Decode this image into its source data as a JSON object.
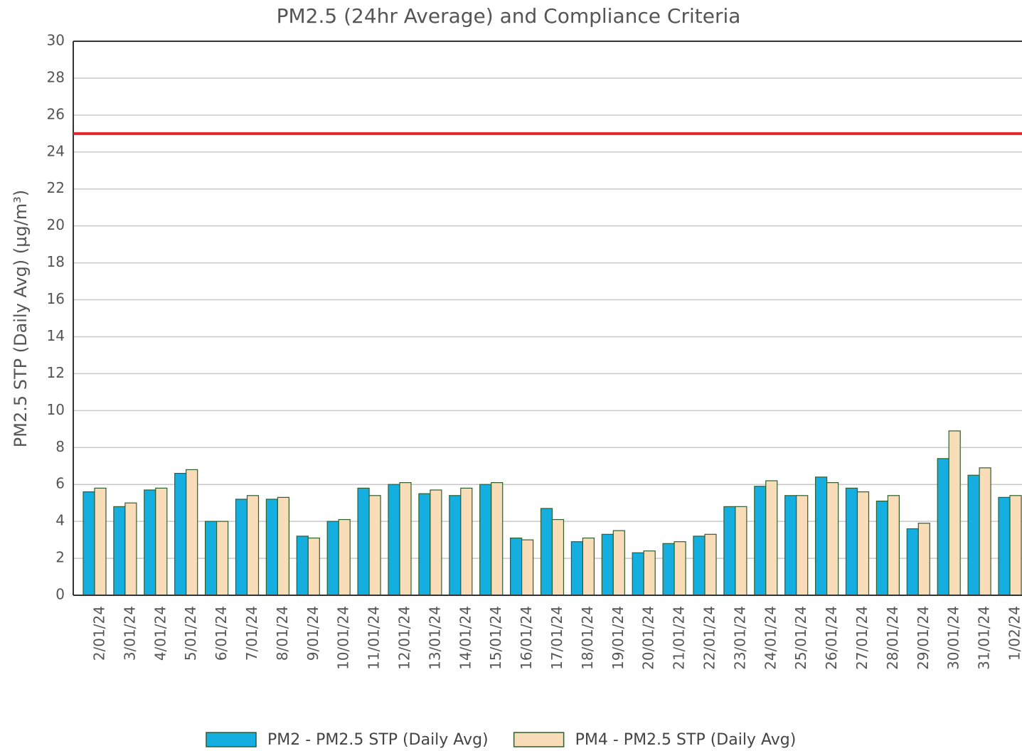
{
  "chart_data": {
    "type": "bar",
    "title": "PM2.5 (24hr Average) and Compliance Criteria",
    "y_label": "PM2.5 STP (Daily Avg) (µg/m³)",
    "categories": [
      "2/01/24",
      "3/01/24",
      "4/01/24",
      "5/01/24",
      "6/01/24",
      "7/01/24",
      "8/01/24",
      "9/01/24",
      "10/01/24",
      "11/01/24",
      "12/01/24",
      "13/01/24",
      "14/01/24",
      "15/01/24",
      "16/01/24",
      "17/01/24",
      "18/01/24",
      "19/01/24",
      "20/01/24",
      "21/01/24",
      "22/01/24",
      "23/01/24",
      "24/01/24",
      "25/01/24",
      "26/01/24",
      "27/01/24",
      "28/01/24",
      "29/01/24",
      "30/01/24",
      "31/01/24",
      "1/02/24"
    ],
    "series": [
      {
        "name": "PM2 - PM2.5 STP (Daily Avg)",
        "color": "#14aee0",
        "values": [
          5.6,
          4.8,
          5.7,
          6.6,
          4.0,
          5.2,
          5.2,
          3.2,
          4.0,
          5.8,
          6.0,
          5.5,
          5.4,
          6.0,
          3.1,
          4.7,
          2.9,
          3.3,
          2.3,
          2.8,
          3.2,
          4.8,
          5.9,
          5.4,
          6.4,
          5.8,
          5.1,
          3.6,
          7.4,
          6.5,
          5.3
        ]
      },
      {
        "name": "PM4 - PM2.5 STP (Daily Avg)",
        "color": "#f8ddb8",
        "values": [
          5.8,
          5.0,
          5.8,
          6.8,
          4.0,
          5.4,
          5.3,
          3.1,
          4.1,
          5.4,
          6.1,
          5.7,
          5.8,
          6.1,
          3.0,
          4.1,
          3.1,
          3.5,
          2.4,
          2.9,
          3.3,
          4.8,
          6.2,
          5.4,
          6.1,
          5.6,
          5.4,
          3.9,
          8.9,
          6.9,
          5.4
        ]
      }
    ],
    "reference_line": {
      "value": 25,
      "color": "#e0262e"
    },
    "ylim": [
      0,
      30
    ],
    "yticks": [
      0,
      2,
      4,
      6,
      8,
      10,
      12,
      14,
      16,
      18,
      20,
      22,
      24,
      26,
      28,
      30
    ],
    "grid": true,
    "legend": "bottom"
  }
}
